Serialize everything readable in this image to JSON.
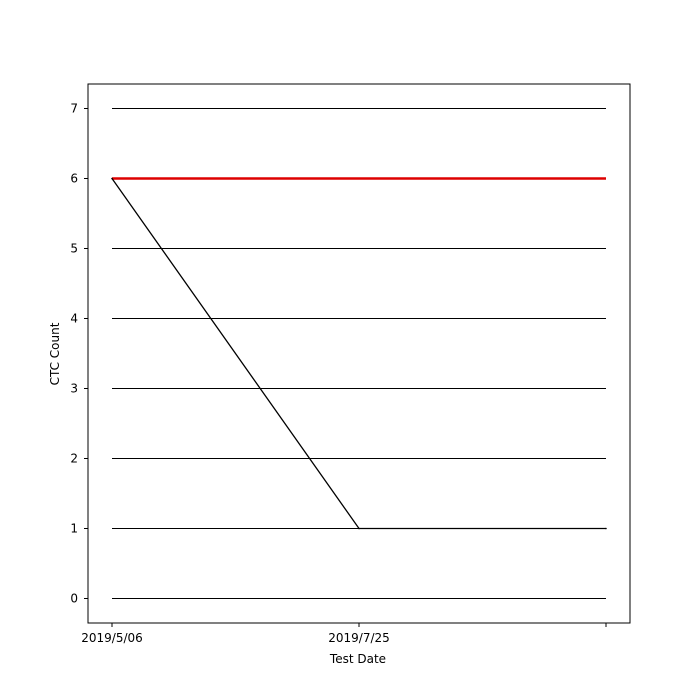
{
  "chart_data": {
    "type": "line",
    "title": "",
    "xlabel": "Test Date",
    "ylabel": "CTC Count",
    "categories": [
      "2019/5/06",
      "2019/7/25",
      ""
    ],
    "ylim": [
      -0.35,
      7.35
    ],
    "yticks": [
      0,
      1,
      2,
      3,
      4,
      5,
      6,
      7
    ],
    "grid": "horizontal",
    "legend": "none",
    "reference_line": {
      "value": 6,
      "color": "#dd0000"
    },
    "series": [
      {
        "values": [
          6,
          1,
          1
        ],
        "color": "#000000"
      }
    ]
  }
}
